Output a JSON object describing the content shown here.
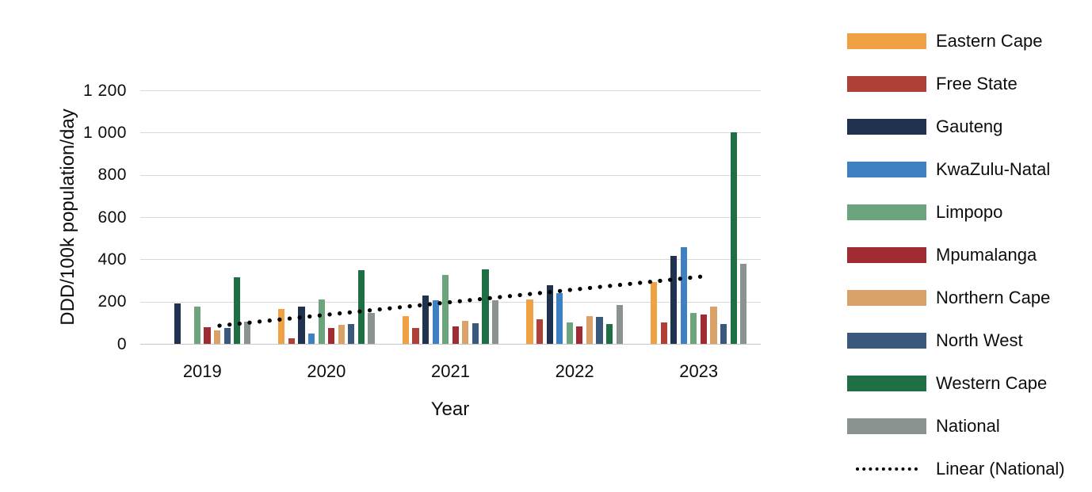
{
  "figure": {
    "y_axis_title": "DDD/100k population/day",
    "x_axis_title": "Year",
    "y_tick_labels": [
      "1 200",
      "1 000",
      "800",
      "600",
      "400",
      "200",
      "0"
    ]
  },
  "chart_data": {
    "type": "bar",
    "title": "",
    "xlabel": "Year",
    "ylabel": "DDD/100k population/day",
    "ylim": [
      0,
      1200
    ],
    "y_tick_step": 200,
    "grid": true,
    "legend_position": "right",
    "categories": [
      "2019",
      "2020",
      "2021",
      "2022",
      "2023"
    ],
    "series": [
      {
        "name": "Eastern Cape",
        "color": "#F0A144",
        "values": [
          0,
          165,
          132,
          210,
          293
        ]
      },
      {
        "name": "Free State",
        "color": "#AE4038",
        "values": [
          0,
          25,
          74,
          116,
          100
        ]
      },
      {
        "name": "Gauteng",
        "color": "#1F3350",
        "values": [
          192,
          175,
          230,
          277,
          415
        ]
      },
      {
        "name": "KwaZulu-Natal",
        "color": "#3E81C2",
        "values": [
          0,
          48,
          207,
          240,
          457
        ]
      },
      {
        "name": "Limpopo",
        "color": "#6BA47D",
        "values": [
          176,
          210,
          325,
          103,
          148
        ]
      },
      {
        "name": "Mpumalanga",
        "color": "#A02B33",
        "values": [
          78,
          74,
          81,
          84,
          137
        ]
      },
      {
        "name": "Northern Cape",
        "color": "#D9A269",
        "values": [
          62,
          90,
          107,
          132,
          177
        ]
      },
      {
        "name": "North West",
        "color": "#3A587C",
        "values": [
          76,
          93,
          99,
          127,
          94
        ]
      },
      {
        "name": "Western Cape",
        "color": "#1E7044",
        "values": [
          315,
          347,
          352,
          93,
          1000
        ]
      },
      {
        "name": "National",
        "color": "#8A938F",
        "values": [
          105,
          145,
          206,
          182,
          378
        ]
      }
    ],
    "trendline": {
      "name": "Linear (National)",
      "style": "dotted",
      "color": "#000000",
      "start_value": 86,
      "end_value": 319
    }
  }
}
